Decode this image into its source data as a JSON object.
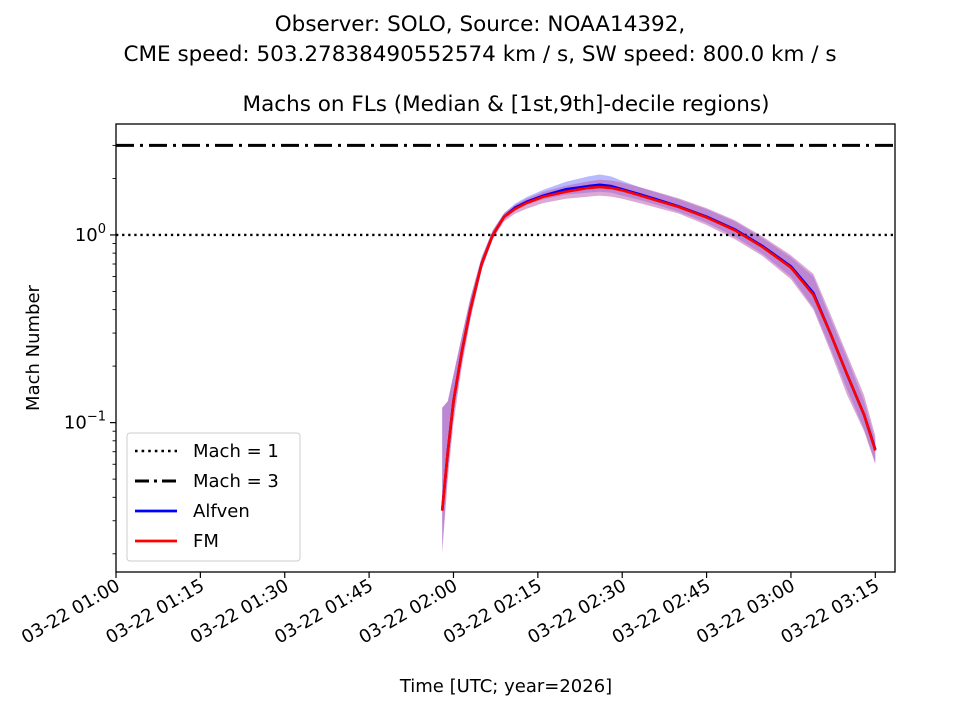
{
  "header": {
    "line1": "Observer: SOLO, Source: NOAA14392,",
    "line2": "CME speed: 503.27838490552574 km / s, SW speed: 800.0 km / s"
  },
  "chart_data": {
    "type": "line",
    "title": "Machs on FLs (Median & [1st,9th]-decile regions)",
    "xlabel": "Time [UTC; year=2026]",
    "ylabel": "Mach Number",
    "yscale": "log",
    "x_ticks": [
      "03-22 01:00",
      "03-22 01:15",
      "03-22 01:30",
      "03-22 01:45",
      "03-22 02:00",
      "03-22 02:15",
      "03-22 02:30",
      "03-22 02:45",
      "03-22 03:00",
      "03-22 03:15"
    ],
    "x_tick_minutes": [
      0,
      15,
      30,
      45,
      60,
      75,
      90,
      105,
      120,
      135
    ],
    "xlim_minutes": [
      0,
      138.5
    ],
    "ylim": [
      0.016,
      3.9
    ],
    "y_major_ticks": [
      {
        "value": 0.1,
        "base": "10",
        "exp": "−1"
      },
      {
        "value": 1,
        "base": "10",
        "exp": "0"
      }
    ],
    "reference_lines": [
      {
        "name": "Mach = 1",
        "value": 1,
        "style": "dotted",
        "color": "#000000"
      },
      {
        "name": "Mach = 3",
        "value": 3,
        "style": "dashdot",
        "color": "#000000"
      }
    ],
    "series": [
      {
        "name": "Alfven",
        "color": "#0000ff",
        "band_color": "#8080ff",
        "x_minutes": [
          58.0,
          59.0,
          60.0,
          61.5,
          63.0,
          65.0,
          67.0,
          69.0,
          71.0,
          73.0,
          76.0,
          80.0,
          84.0,
          86.0,
          88.0,
          90.0,
          93.0,
          96.0,
          100.0,
          105.0,
          110.0,
          115.0,
          120.0,
          124.0,
          127.0,
          130.0,
          133.0,
          135.0
        ],
        "median": [
          0.034,
          0.07,
          0.13,
          0.24,
          0.4,
          0.7,
          1.0,
          1.25,
          1.4,
          1.5,
          1.62,
          1.75,
          1.82,
          1.85,
          1.82,
          1.75,
          1.65,
          1.55,
          1.42,
          1.25,
          1.07,
          0.87,
          0.68,
          0.49,
          0.3,
          0.18,
          0.11,
          0.072
        ],
        "p10": [
          0.022,
          0.055,
          0.11,
          0.21,
          0.36,
          0.66,
          0.96,
          1.2,
          1.35,
          1.45,
          1.55,
          1.64,
          1.68,
          1.7,
          1.68,
          1.62,
          1.54,
          1.45,
          1.33,
          1.16,
          0.98,
          0.79,
          0.6,
          0.41,
          0.25,
          0.15,
          0.092,
          0.061
        ],
        "p90": [
          0.12,
          0.13,
          0.18,
          0.29,
          0.46,
          0.76,
          1.06,
          1.31,
          1.47,
          1.59,
          1.74,
          1.92,
          2.05,
          2.1,
          2.05,
          1.94,
          1.8,
          1.69,
          1.55,
          1.37,
          1.18,
          0.96,
          0.76,
          0.6,
          0.36,
          0.22,
          0.13,
          0.08
        ]
      },
      {
        "name": "FM",
        "color": "#ff0000",
        "band_color": "#c060b0",
        "x_minutes": [
          58.0,
          59.0,
          60.0,
          61.5,
          63.0,
          65.0,
          67.0,
          69.0,
          71.0,
          73.0,
          76.0,
          80.0,
          84.0,
          86.0,
          88.0,
          90.0,
          93.0,
          96.0,
          100.0,
          105.0,
          110.0,
          115.0,
          120.0,
          124.0,
          127.0,
          130.0,
          133.0,
          135.0
        ],
        "median": [
          0.034,
          0.07,
          0.13,
          0.24,
          0.4,
          0.7,
          1.0,
          1.25,
          1.38,
          1.48,
          1.6,
          1.7,
          1.78,
          1.8,
          1.78,
          1.73,
          1.63,
          1.53,
          1.41,
          1.24,
          1.06,
          0.86,
          0.67,
          0.48,
          0.3,
          0.18,
          0.11,
          0.071
        ],
        "p10": [
          0.02,
          0.05,
          0.1,
          0.2,
          0.35,
          0.65,
          0.95,
          1.18,
          1.3,
          1.38,
          1.48,
          1.56,
          1.6,
          1.62,
          1.6,
          1.56,
          1.48,
          1.4,
          1.3,
          1.13,
          0.95,
          0.77,
          0.58,
          0.4,
          0.24,
          0.14,
          0.09,
          0.06
        ],
        "p90": [
          0.12,
          0.13,
          0.18,
          0.29,
          0.46,
          0.76,
          1.06,
          1.3,
          1.45,
          1.56,
          1.7,
          1.83,
          1.93,
          1.97,
          1.95,
          1.9,
          1.8,
          1.7,
          1.57,
          1.39,
          1.2,
          0.98,
          0.78,
          0.62,
          0.38,
          0.23,
          0.14,
          0.085
        ]
      }
    ],
    "legend": {
      "placement": "lower-left",
      "entries": [
        "Mach = 1",
        "Mach = 3",
        "Alfven",
        "FM"
      ]
    },
    "grid": false
  }
}
